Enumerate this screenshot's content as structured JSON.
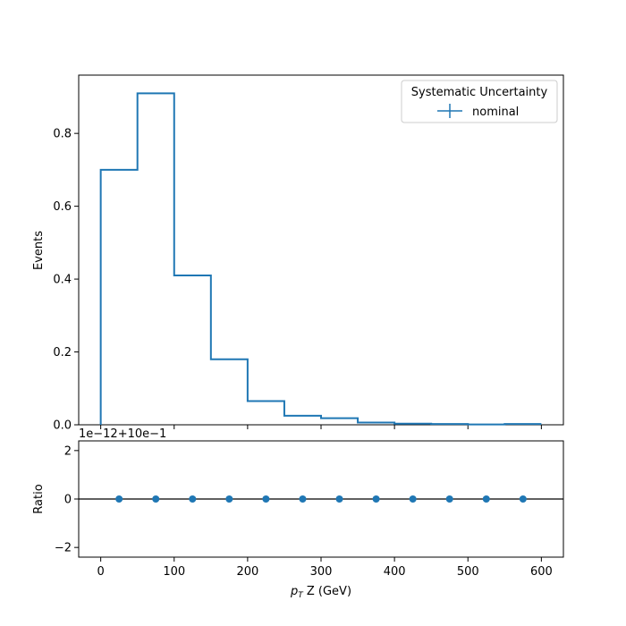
{
  "chart_data": [
    {
      "type": "line",
      "drawstyle": "steps",
      "bin_edges": [
        0,
        50,
        100,
        150,
        200,
        250,
        300,
        350,
        400,
        450,
        500,
        550,
        600
      ],
      "values": [
        0.7,
        0.91,
        0.41,
        0.18,
        0.065,
        0.025,
        0.018,
        0.006,
        0.003,
        0.002,
        0.001,
        0.002
      ],
      "ylabel": "Events",
      "xlim": [
        -30,
        630
      ],
      "ylim": [
        0,
        0.96
      ],
      "yticks": [
        0.0,
        0.2,
        0.4,
        0.6,
        0.8
      ],
      "ytick_labels": [
        "0.0",
        "0.2",
        "0.4",
        "0.6",
        "0.8"
      ],
      "xticks": [
        0,
        100,
        200,
        300,
        400,
        500,
        600
      ],
      "color": "#1f77b4",
      "legend": {
        "title": "Systematic Uncertainty",
        "entries": [
          "nominal"
        ],
        "placement": "top-right"
      },
      "grid": false
    },
    {
      "type": "scatter",
      "x": [
        25,
        75,
        125,
        175,
        225,
        275,
        325,
        375,
        425,
        475,
        525,
        575
      ],
      "y": [
        0,
        0,
        0,
        0,
        0,
        0,
        0,
        0,
        0,
        0,
        0,
        0
      ],
      "ylabel": "Ratio",
      "xlabel_prefix": "p",
      "xlabel_sub": "T",
      "xlabel_rest": " Z (GeV)",
      "offset_text": "1e−12+10e−1",
      "xlim": [
        -30,
        630
      ],
      "ylim": [
        -2.4,
        2.4
      ],
      "yticks": [
        -2,
        0,
        2
      ],
      "ytick_labels": [
        "−2",
        "0",
        "2"
      ],
      "xticks": [
        0,
        100,
        200,
        300,
        400,
        500,
        600
      ],
      "xtick_labels": [
        "0",
        "100",
        "200",
        "300",
        "400",
        "500",
        "600"
      ],
      "reference_line": 0,
      "color": "#1f77b4",
      "grid": false
    }
  ]
}
